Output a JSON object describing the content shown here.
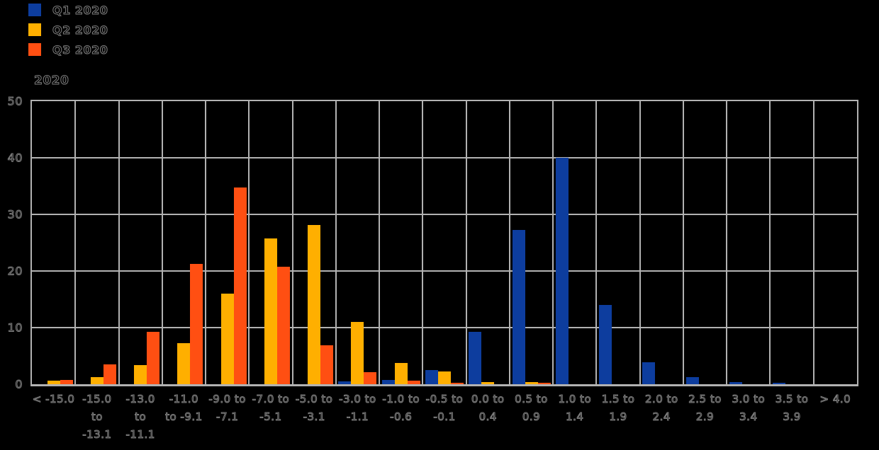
{
  "page": {
    "background_color": "#000000",
    "text_outline_color": "#7f7f7f",
    "grid_color": "#b2b2b2"
  },
  "legend": {
    "items": [
      {
        "label": "Q1 2020",
        "color": "#0d3d9e"
      },
      {
        "label": "Q2 2020",
        "color": "#ffaf00"
      },
      {
        "label": "Q3 2020",
        "color": "#ff4f12"
      }
    ]
  },
  "chart_data": {
    "type": "bar",
    "title": "2020",
    "xlabel": "",
    "ylabel": "",
    "ylim": [
      0,
      50
    ],
    "yticks": [
      0,
      10,
      20,
      30,
      40,
      50
    ],
    "grid": true,
    "legend_position": "top-left",
    "categories": [
      "< -15.0",
      "-15.0 to -13.1",
      "-13.0 to -11.1",
      "-11.0 to -9.1",
      "-9.0 to -7.1",
      "-7.0 to -5.1",
      "-5.0 to -3.1",
      "-3.0 to -1.1",
      "-1.0 to -0.6",
      "-0.5 to -0.1",
      "0.0 to 0.4",
      "0.5 to 0.9",
      "1.0 to 1.4",
      "1.5 to 1.9",
      "2.0 to 2.4",
      "2.5 to 2.9",
      "3.0 to 3.4",
      "3.5 to 3.9",
      "> 4.0"
    ],
    "tick_labels_wrapped": [
      "< -15.0",
      "-15.0\nto\n-13.1",
      "-13.0\nto\n-11.1",
      "-11.0\nto -9.1",
      "-9.0 to\n-7.1",
      "-7.0 to\n-5.1",
      "-5.0 to\n-3.1",
      "-3.0 to\n-1.1",
      "-1.0 to\n-0.6",
      "-0.5 to\n-0.1",
      "0.0 to\n0.4",
      "0.5 to\n0.9",
      "1.0 to\n1.4",
      "1.5 to\n1.9",
      "2.0 to\n2.4",
      "2.5 to\n2.9",
      "3.0 to\n3.4",
      "3.5 to\n3.9",
      "> 4.0"
    ],
    "series": [
      {
        "name": "Q1 2020",
        "color": "#0d3d9e",
        "values": [
          0,
          0,
          0,
          0,
          0,
          0,
          0,
          0.5,
          0.7,
          2.5,
          9.3,
          27.3,
          40,
          14,
          3.9,
          1.3,
          0.4,
          0.2,
          0
        ]
      },
      {
        "name": "Q2 2020",
        "color": "#ffaf00",
        "values": [
          0.6,
          1.3,
          3.4,
          7.2,
          16,
          25.7,
          28.1,
          11,
          3.8,
          2.2,
          0.4,
          0.4,
          0,
          0,
          0,
          0,
          0,
          0,
          0
        ]
      },
      {
        "name": "Q3 2020",
        "color": "#ff4f12",
        "values": [
          0.8,
          3.5,
          9.3,
          21.2,
          34.7,
          20.8,
          6.9,
          2.1,
          0.6,
          0.3,
          0,
          0.2,
          0,
          0,
          0,
          0,
          0,
          0,
          0
        ]
      }
    ]
  }
}
